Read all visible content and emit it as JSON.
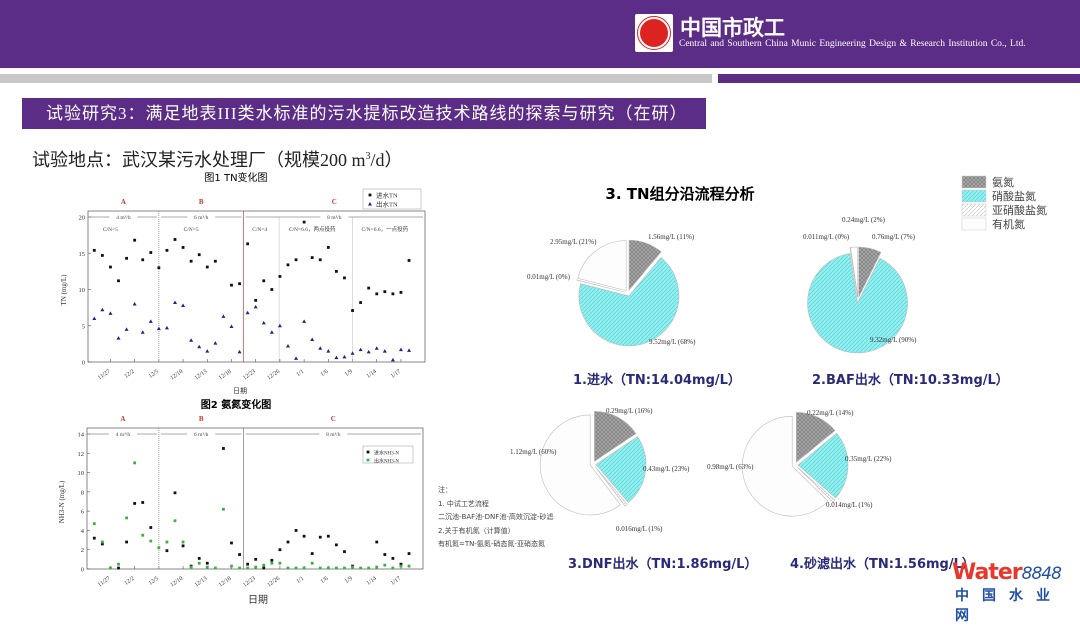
{
  "header": {
    "logo_cn": "中国市政工",
    "logo_en": "Central and Southern China Munic     Engineering Design & Research Institution Co., Ltd."
  },
  "slide": {
    "title": "试验研究3：满足地表III类水标准的污水提标改造技术路线的探索与研究（在研）",
    "site_label": "试验地点：武汉某污水处理厂（规模200 m",
    "site_sup": "3",
    "site_end": "/d）"
  },
  "colors": {
    "header": "#5c2d86",
    "nitrate": "#8ff0f0",
    "ammonia": "#a8a8a8",
    "effluent_nh3": "#3cb043",
    "phase_letter": "#c0392b"
  },
  "chart_data": [
    {
      "type": "scatter",
      "title": "图1  TN变化图",
      "xlabel": "日期",
      "ylabel": "TN (mg/L)",
      "ylim": [
        0,
        20
      ],
      "yticks": [
        "0",
        "5",
        "10",
        "15",
        "20"
      ],
      "xticks": [
        "11/27",
        "12/2",
        "12/5",
        "12/10",
        "12/13",
        "12/18",
        "12/23",
        "12/26",
        "1/1",
        "1/6",
        "1/9",
        "1/14",
        "1/17"
      ],
      "legend": "top-right",
      "phases": [
        {
          "letter": "A",
          "flow": "4 m³/h"
        },
        {
          "letter": "B",
          "flow": "6 m³/h"
        },
        {
          "letter": "C",
          "flow": "8 m³/h"
        }
      ],
      "cn_ratios": [
        "C/N=5",
        "C/N=5",
        "C/N=4",
        "C/N=6.6，两点投药",
        "C/N=6.6，一点投药"
      ],
      "series": [
        {
          "name": "进水TN",
          "marker": "square",
          "values": [
            15.4,
            14.7,
            13.1,
            11.2,
            14.3,
            16.8,
            14.1,
            15.1,
            13.0,
            15.4,
            16.9,
            15.8,
            13.9,
            14.8,
            13.1,
            13.9,
            null,
            10.6,
            10.8,
            16.3,
            8.5,
            11.2,
            10.0,
            11.8,
            13.4,
            14.1,
            19.3,
            14.4,
            14.1,
            15.8,
            12.5,
            11.6,
            7.1,
            8.2,
            10.2,
            9.4,
            9.7,
            9.4,
            9.6,
            14.0
          ]
        },
        {
          "name": "出水TN",
          "marker": "triangle",
          "values": [
            6.0,
            7.2,
            6.7,
            3.3,
            4.5,
            8.0,
            4.1,
            5.6,
            4.6,
            4.7,
            8.2,
            7.8,
            3.0,
            2.1,
            1.5,
            2.6,
            6.3,
            4.9,
            1.4,
            6.8,
            7.6,
            5.4,
            4.1,
            5.0,
            2.2,
            0.5,
            5.6,
            3.1,
            1.9,
            1.5,
            0.6,
            0.7,
            1.2,
            1.7,
            1.4,
            1.9,
            1.5,
            0.3,
            1.7,
            1.6
          ]
        }
      ]
    },
    {
      "type": "scatter",
      "title": "图2  氨氮变化图",
      "xlabel": "日期",
      "ylabel": "NH3-N (mg/L)",
      "ylim": [
        0,
        14
      ],
      "yticks": [
        "0",
        "2",
        "4",
        "6",
        "8",
        "10",
        "12",
        "14"
      ],
      "xticks": [
        "11/27",
        "12/2",
        "12/5",
        "12/10",
        "12/13",
        "12/18",
        "12/23",
        "12/26",
        "1/1",
        "1/6",
        "1/9",
        "1/14",
        "1/17"
      ],
      "legend": "top-right",
      "phases": [
        {
          "letter": "A",
          "flow": "4 m³/h"
        },
        {
          "letter": "B",
          "flow": "6 m³/h"
        },
        {
          "letter": "C",
          "flow": "8 m³/h"
        }
      ],
      "series": [
        {
          "name": "进水NH3-N",
          "color": "#111111",
          "values": [
            3.2,
            2.6,
            null,
            0.1,
            2.8,
            6.8,
            6.9,
            4.3,
            null,
            1.9,
            7.9,
            2.4,
            0.3,
            1.1,
            0.6,
            null,
            12.5,
            2.7,
            1.5,
            0.5,
            1.0,
            0.1,
            0.9,
            2.0,
            2.8,
            4.0,
            3.4,
            1.6,
            3.3,
            3.4,
            2.5,
            1.8,
            0.3,
            null,
            null,
            2.8,
            1.5,
            1.1,
            0.5,
            1.6
          ]
        },
        {
          "name": "出水NH3-N",
          "color": "#3cb043",
          "values": [
            4.7,
            2.8,
            0.1,
            0.5,
            5.3,
            11.0,
            3.5,
            2.9,
            2.2,
            2.8,
            5.0,
            2.8,
            0.2,
            0.6,
            0.2,
            0.1,
            6.2,
            0.3,
            0.1,
            0.1,
            0.2,
            0.4,
            0.6,
            0.6,
            0.1,
            0.1,
            0.1,
            0.6,
            0.1,
            0.1,
            0.1,
            0.1,
            0.2,
            0.1,
            0.1,
            0.2,
            0.4,
            0.1,
            0.3,
            0.3
          ]
        }
      ]
    },
    {
      "type": "pie",
      "group_title": "3. TN组分沿流程分析",
      "legend": "top-right",
      "categories": [
        "氨氮",
        "硝酸盐氮",
        "亚硝酸盐氮",
        "有机氮"
      ],
      "pies": [
        {
          "caption": "1.进水（TN:14.04mg/L）",
          "values": [
            1.56,
            9.52,
            0.01,
            2.95
          ],
          "labels": [
            "1.56mg/L (11%)",
            "9.52mg/L (68%)",
            "0.01mg/L (0%)",
            "2.95mg/L (21%)"
          ]
        },
        {
          "caption": "2.BAF出水（TN:10.33mg/L）",
          "values": [
            0.76,
            9.32,
            0.011,
            0.24
          ],
          "labels": [
            "0.76mg/L (7%)",
            "9.32mg/L (90%)",
            "0.011mg/L (0%)",
            "0.24mg/L (2%)"
          ]
        },
        {
          "caption": "3.DNF出水（TN:1.86mg/L）",
          "values": [
            0.29,
            0.43,
            0.016,
            1.12
          ],
          "labels": [
            "0.29mg/L (16%)",
            "0.43mg/L (23%)",
            "0.016mg/L (1%)",
            "1.12mg/L (60%)"
          ]
        },
        {
          "caption": "4.砂滤出水（TN:1.56mg/L）",
          "values": [
            0.22,
            0.35,
            0.014,
            0.98
          ],
          "labels": [
            "0.22mg/L (14%)",
            "0.35mg/L (22%)",
            "0.014mg/L (1%)",
            "0.98mg/L (63%)"
          ]
        }
      ]
    }
  ],
  "notes": [
    "注：",
    "1. 中试工艺流程",
    "二沉池-BAF池-DNF池-高效沉淀-砂滤",
    "2.关于有机氮（计算值）",
    "有机氮=TN-氨氮-硝态氮-亚硝态氮"
  ],
  "watermark": {
    "brand": "Water",
    "num": "8848",
    "cn": "中国水业网"
  }
}
